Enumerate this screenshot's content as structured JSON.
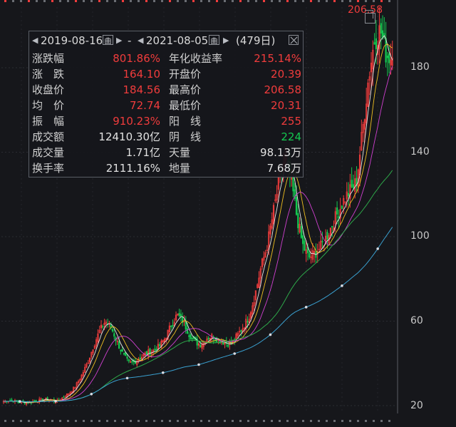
{
  "header": {
    "start_date": "2019-08-16",
    "separator": "-",
    "end_date": "2021-08-05",
    "days": "(479日)",
    "calendar_glyph": "曲"
  },
  "stats": [
    {
      "l1": "涨跌幅",
      "v1": "801.86%",
      "c1": "red",
      "l2": "年化收益率",
      "v2": "215.14%",
      "c2": "red"
    },
    {
      "l1": "涨　跌",
      "v1": "164.10",
      "c1": "red",
      "l2": "开盘价",
      "v2": "20.39",
      "c2": "red"
    },
    {
      "l1": "收盘价",
      "v1": "184.56",
      "c1": "red",
      "l2": "最高价",
      "v2": "206.58",
      "c2": "red"
    },
    {
      "l1": "均　价",
      "v1": "72.74",
      "c1": "red",
      "l2": "最低价",
      "v2": "20.31",
      "c2": "red"
    },
    {
      "l1": "振　幅",
      "v1": "910.23%",
      "c1": "red",
      "l2": "阳　线",
      "v2": "255",
      "c2": "red"
    },
    {
      "l1": "成交额",
      "v1": "12410.30亿",
      "c1": "white",
      "l2": "阴　线",
      "v2": "224",
      "c2": "green"
    },
    {
      "l1": "成交量",
      "v1": "1.71亿",
      "c1": "white",
      "l2": "天量",
      "v2": "98.13万",
      "c2": "white"
    },
    {
      "l1": "换手率",
      "v1": "2111.16%",
      "c1": "white",
      "l2": "地量",
      "v2": "7.68万",
      "c2": "white"
    }
  ],
  "max_label": "206.58",
  "y_axis": {
    "ticks": [
      "180",
      "140",
      "100",
      "60",
      "20"
    ]
  },
  "chart_data": {
    "type": "line",
    "ylim": [
      18,
      206
    ],
    "colors": {
      "up": "#f03c3c",
      "down": "#14c850",
      "ma5": "#e8e8e8",
      "ma10": "#f0c020",
      "ma20": "#d040d0",
      "ma60": "#2ea84a",
      "ma120": "#3aa0d0",
      "ma250": "#9aa0aa"
    },
    "close": [
      22,
      22.5,
      22,
      21.5,
      21.5,
      22,
      22.5,
      23,
      22.5,
      22,
      24,
      26,
      29,
      34,
      40,
      48,
      55,
      60,
      57,
      50,
      44,
      40,
      41,
      43,
      45,
      46,
      48,
      52,
      58,
      63,
      60,
      54,
      50,
      49,
      52,
      53,
      51,
      50,
      49,
      53,
      57,
      62,
      72,
      85,
      95,
      110,
      125,
      138,
      128,
      110,
      96,
      90,
      92,
      95,
      100,
      106,
      112,
      118,
      122,
      126,
      150,
      175,
      193,
      198,
      186,
      184.56
    ]
  }
}
